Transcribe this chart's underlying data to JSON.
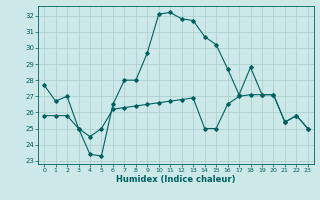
{
  "xlabel": "Humidex (Indice chaleur)",
  "background_color": "#cce8e8",
  "grid_color": "#aacccc",
  "line_color": "#006060",
  "xlim": [
    -0.5,
    23.5
  ],
  "ylim": [
    22.8,
    32.6
  ],
  "yticks": [
    23,
    24,
    25,
    26,
    27,
    28,
    29,
    30,
    31,
    32
  ],
  "xticks": [
    0,
    1,
    2,
    3,
    4,
    5,
    6,
    7,
    8,
    9,
    10,
    11,
    12,
    13,
    14,
    15,
    16,
    17,
    18,
    19,
    20,
    21,
    22,
    23
  ],
  "line1_x": [
    0,
    1,
    2,
    3,
    4,
    5,
    6,
    7,
    8,
    9,
    10,
    11,
    12,
    13,
    14,
    15,
    16,
    17,
    18,
    19,
    20,
    21,
    22,
    23
  ],
  "line1_y": [
    27.7,
    26.7,
    27.0,
    25.0,
    23.4,
    23.3,
    26.5,
    28.0,
    28.0,
    29.7,
    32.1,
    32.2,
    31.8,
    31.7,
    30.7,
    30.2,
    28.7,
    27.1,
    28.8,
    27.1,
    27.1,
    25.4,
    25.8,
    25.0
  ],
  "line2_x": [
    0,
    1,
    2,
    3,
    4,
    5,
    6,
    7,
    8,
    9,
    10,
    11,
    12,
    13,
    14,
    15,
    16,
    17,
    18,
    19,
    20,
    21,
    22,
    23
  ],
  "line2_y": [
    25.8,
    25.8,
    25.8,
    25.0,
    24.5,
    25.0,
    26.2,
    26.3,
    26.4,
    26.5,
    26.6,
    26.7,
    26.8,
    26.9,
    25.0,
    25.0,
    26.5,
    27.0,
    27.1,
    27.1,
    27.1,
    25.4,
    25.8,
    25.0
  ]
}
